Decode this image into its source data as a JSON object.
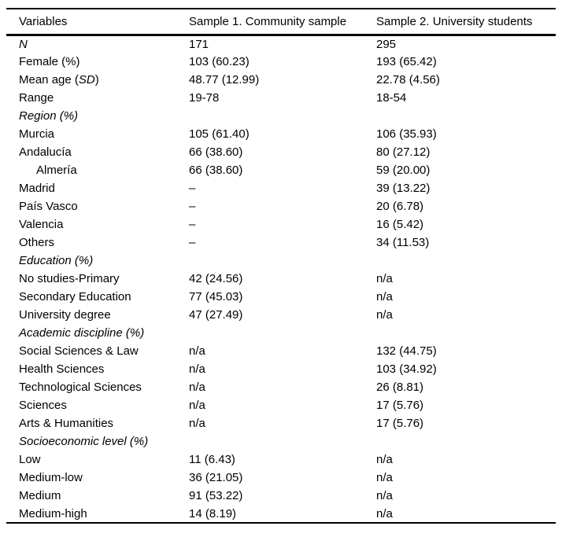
{
  "table": {
    "header": {
      "col1": "Variables",
      "col2": "Sample 1. Community sample",
      "col3": "Sample 2. University students"
    },
    "rows": [
      {
        "parts": [
          {
            "text": "N",
            "italic": true
          }
        ],
        "indent": false,
        "section": false,
        "s1": "171",
        "s2": "295"
      },
      {
        "parts": [
          {
            "text": "Female (%)",
            "italic": false
          }
        ],
        "indent": false,
        "section": false,
        "s1": "103 (60.23)",
        "s2": "193 (65.42)"
      },
      {
        "parts": [
          {
            "text": "Mean age (",
            "italic": false
          },
          {
            "text": "SD",
            "italic": true
          },
          {
            "text": ")",
            "italic": false
          }
        ],
        "indent": false,
        "section": false,
        "s1": "48.77 (12.99)",
        "s2": "22.78 (4.56)"
      },
      {
        "parts": [
          {
            "text": "Range",
            "italic": false
          }
        ],
        "indent": false,
        "section": false,
        "s1": "19-78",
        "s2": "18-54"
      },
      {
        "parts": [
          {
            "text": "Region (%)",
            "italic": true
          }
        ],
        "indent": false,
        "section": true,
        "s1": "",
        "s2": ""
      },
      {
        "parts": [
          {
            "text": "Murcia",
            "italic": false
          }
        ],
        "indent": false,
        "section": false,
        "s1": "105 (61.40)",
        "s2": "106 (35.93)"
      },
      {
        "parts": [
          {
            "text": "Andalucía",
            "italic": false
          }
        ],
        "indent": false,
        "section": false,
        "s1": "66 (38.60)",
        "s2": "80 (27.12)"
      },
      {
        "parts": [
          {
            "text": "Almería",
            "italic": false
          }
        ],
        "indent": true,
        "section": false,
        "s1": "66 (38.60)",
        "s2": "59 (20.00)"
      },
      {
        "parts": [
          {
            "text": "Madrid",
            "italic": false
          }
        ],
        "indent": false,
        "section": false,
        "s1": "–",
        "s2": "39 (13.22)"
      },
      {
        "parts": [
          {
            "text": "País Vasco",
            "italic": false
          }
        ],
        "indent": false,
        "section": false,
        "s1": "–",
        "s2": "20 (6.78)"
      },
      {
        "parts": [
          {
            "text": "Valencia",
            "italic": false
          }
        ],
        "indent": false,
        "section": false,
        "s1": "–",
        "s2": "16 (5.42)"
      },
      {
        "parts": [
          {
            "text": "Others",
            "italic": false
          }
        ],
        "indent": false,
        "section": false,
        "s1": "–",
        "s2": "34 (11.53)"
      },
      {
        "parts": [
          {
            "text": "Education (%)",
            "italic": true
          }
        ],
        "indent": false,
        "section": true,
        "s1": "",
        "s2": ""
      },
      {
        "parts": [
          {
            "text": "No studies-Primary",
            "italic": false
          }
        ],
        "indent": false,
        "section": false,
        "s1": "42 (24.56)",
        "s2": "n/a"
      },
      {
        "parts": [
          {
            "text": "Secondary Education",
            "italic": false
          }
        ],
        "indent": false,
        "section": false,
        "s1": "77 (45.03)",
        "s2": "n/a"
      },
      {
        "parts": [
          {
            "text": "University degree",
            "italic": false
          }
        ],
        "indent": false,
        "section": false,
        "s1": "47 (27.49)",
        "s2": "n/a"
      },
      {
        "parts": [
          {
            "text": "Academic discipline (%)",
            "italic": true
          }
        ],
        "indent": false,
        "section": true,
        "s1": "",
        "s2": ""
      },
      {
        "parts": [
          {
            "text": "Social Sciences & Law",
            "italic": false
          }
        ],
        "indent": false,
        "section": false,
        "s1": "n/a",
        "s2": "132 (44.75)"
      },
      {
        "parts": [
          {
            "text": "Health Sciences",
            "italic": false
          }
        ],
        "indent": false,
        "section": false,
        "s1": "n/a",
        "s2": "103 (34.92)"
      },
      {
        "parts": [
          {
            "text": "Technological Sciences",
            "italic": false
          }
        ],
        "indent": false,
        "section": false,
        "s1": "n/a",
        "s2": "26 (8.81)"
      },
      {
        "parts": [
          {
            "text": "Sciences",
            "italic": false
          }
        ],
        "indent": false,
        "section": false,
        "s1": "n/a",
        "s2": "17 (5.76)"
      },
      {
        "parts": [
          {
            "text": "Arts & Humanities",
            "italic": false
          }
        ],
        "indent": false,
        "section": false,
        "s1": "n/a",
        "s2": "17 (5.76)"
      },
      {
        "parts": [
          {
            "text": "Socioeconomic level (%)",
            "italic": true
          }
        ],
        "indent": false,
        "section": true,
        "s1": "",
        "s2": ""
      },
      {
        "parts": [
          {
            "text": "Low",
            "italic": false
          }
        ],
        "indent": false,
        "section": false,
        "s1": "11 (6.43)",
        "s2": "n/a"
      },
      {
        "parts": [
          {
            "text": "Medium-low",
            "italic": false
          }
        ],
        "indent": false,
        "section": false,
        "s1": "36 (21.05)",
        "s2": "n/a"
      },
      {
        "parts": [
          {
            "text": "Medium",
            "italic": false
          }
        ],
        "indent": false,
        "section": false,
        "s1": "91 (53.22)",
        "s2": "n/a"
      },
      {
        "parts": [
          {
            "text": "Medium-high",
            "italic": false
          }
        ],
        "indent": false,
        "section": false,
        "s1": "14 (8.19)",
        "s2": "n/a"
      }
    ]
  }
}
